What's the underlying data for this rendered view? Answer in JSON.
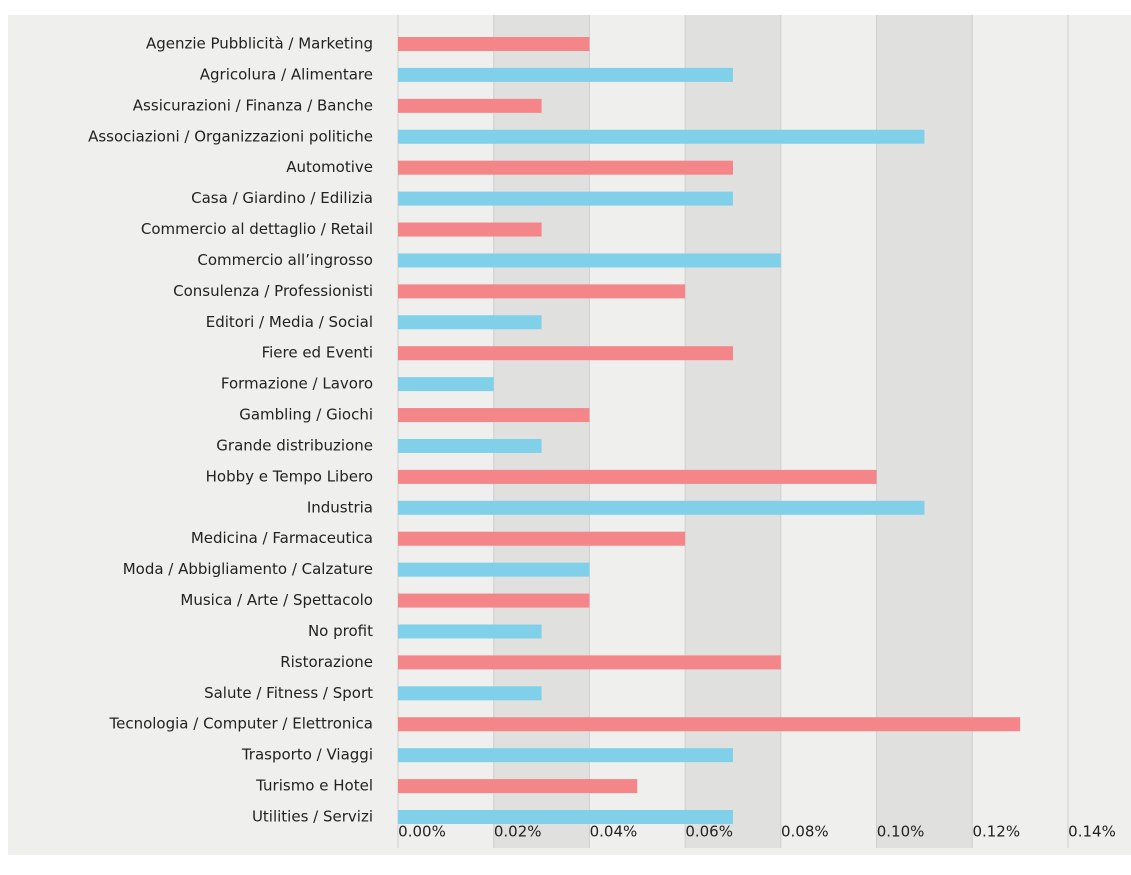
{
  "chart_data": {
    "type": "barh",
    "categories": [
      "Agenzie Pubblicità  / Marketing",
      "Agricolura / Alimentare",
      "Assicurazioni / Finanza / Banche",
      "Associazioni / Organizzazioni politiche",
      "Automotive",
      "Casa / Giardino / Edilizia",
      "Commercio al dettaglio / Retail",
      "Commercio all’ingrosso",
      "Consulenza / Professionisti",
      "Editori / Media / Social",
      "Fiere ed Eventi",
      "Formazione  / Lavoro",
      "Gambling / Giochi",
      "Grande distribuzione",
      "Hobby e Tempo Libero",
      "Industria",
      "Medicina / Farmaceutica",
      "Moda / Abbigliamento / Calzature",
      "Musica / Arte / Spettacolo",
      "No profit",
      "Ristorazione",
      "Salute / Fitness / Sport",
      "Tecnologia / Computer / Elettronica",
      "Trasporto / Viaggi",
      "Turismo e Hotel",
      "Utilities / Servizi"
    ],
    "values": [
      0.04,
      0.07,
      0.03,
      0.11,
      0.07,
      0.07,
      0.03,
      0.08,
      0.06,
      0.03,
      0.07,
      0.02,
      0.04,
      0.03,
      0.1,
      0.11,
      0.06,
      0.04,
      0.04,
      0.03,
      0.08,
      0.03,
      0.13,
      0.07,
      0.05,
      0.07
    ],
    "colors": [
      "#f4868a",
      "#80d0ea",
      "#f4868a",
      "#80d0ea",
      "#f4868a",
      "#80d0ea",
      "#f4868a",
      "#80d0ea",
      "#f4868a",
      "#80d0ea",
      "#f4868a",
      "#80d0ea",
      "#f4868a",
      "#80d0ea",
      "#f4868a",
      "#80d0ea",
      "#f4868a",
      "#80d0ea",
      "#f4868a",
      "#80d0ea",
      "#f4868a",
      "#80d0ea",
      "#f4868a",
      "#80d0ea",
      "#f4868a",
      "#80d0ea"
    ],
    "xlim": [
      0,
      0.14
    ],
    "xticks": [
      {
        "value": 0,
        "label": "0.00%"
      },
      {
        "value": 0.02,
        "label": "0.02%"
      },
      {
        "value": 0.04,
        "label": "0.04%"
      },
      {
        "value": 0.06,
        "label": "0.06%"
      },
      {
        "value": 0.08,
        "label": "0.08%"
      },
      {
        "value": 0.1,
        "label": "0.10%"
      },
      {
        "value": 0.12,
        "label": "0.12%"
      },
      {
        "value": 0.14,
        "label": "0.14%"
      }
    ],
    "grid": true
  }
}
